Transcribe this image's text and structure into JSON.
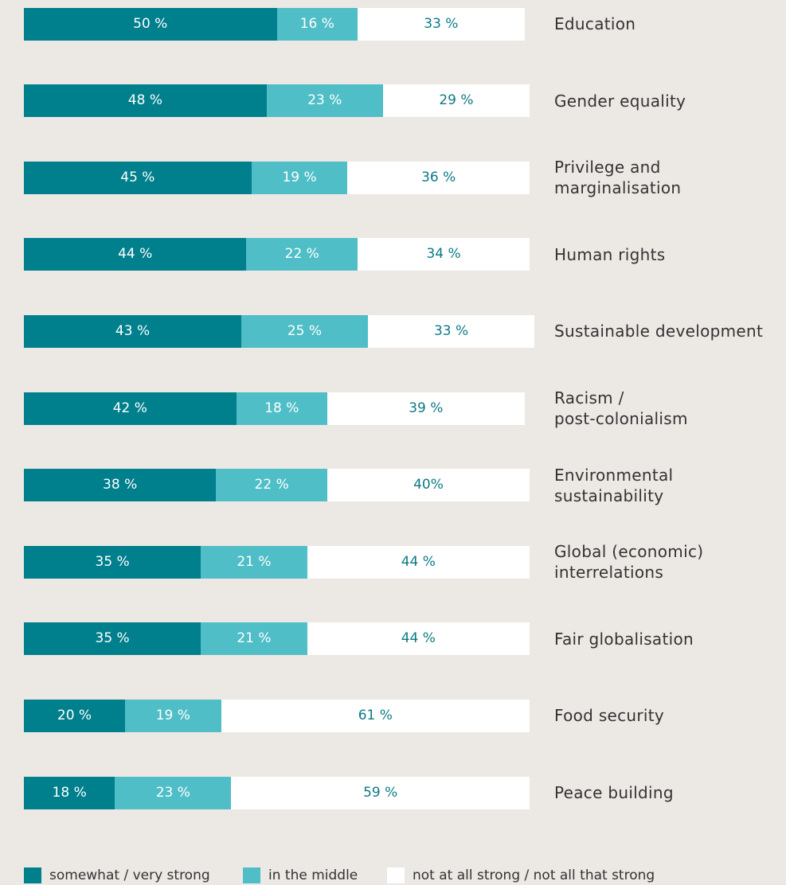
{
  "chart_data": {
    "type": "stacked-bar-horizontal",
    "categories": [
      "Education",
      "Gender equality",
      "Privilege and\nmarginalisation",
      "Human rights",
      "Sustainable development",
      "Racism /\npost-colonialism",
      "Environmental\nsustainability",
      "Global (economic)\ninterrelations",
      "Fair globalisation",
      "Food security",
      "Peace building"
    ],
    "xlim": [
      0,
      100
    ],
    "series": [
      {
        "name": "somewhat / very strong",
        "color": "#007f8c",
        "values": [
          50,
          48,
          45,
          44,
          43,
          42,
          38,
          35,
          35,
          20,
          18
        ],
        "value_labels": [
          "50 %",
          "48 %",
          "45 %",
          "44 %",
          "43 %",
          "42 %",
          "38 %",
          "35 %",
          "35 %",
          "20 %",
          "18 %"
        ]
      },
      {
        "name": "in the middle",
        "color": "#4fbec6",
        "values": [
          16,
          23,
          19,
          22,
          25,
          18,
          22,
          21,
          21,
          19,
          23
        ],
        "value_labels": [
          "16 %",
          "23 %",
          "19 %",
          "22 %",
          "25 %",
          "18 %",
          "22 %",
          "21 %",
          "21 %",
          "19 %",
          "23 %"
        ]
      },
      {
        "name": "not at all strong / not all that strong",
        "color": "#ffffff",
        "values": [
          33,
          29,
          36,
          34,
          33,
          39,
          40,
          44,
          44,
          61,
          59
        ],
        "value_labels": [
          "33 %",
          "29 %",
          "36 %",
          "34 %",
          "33 %",
          "39 %",
          "40%",
          "44 %",
          "44 %",
          "61 %",
          "59 %"
        ]
      }
    ]
  }
}
